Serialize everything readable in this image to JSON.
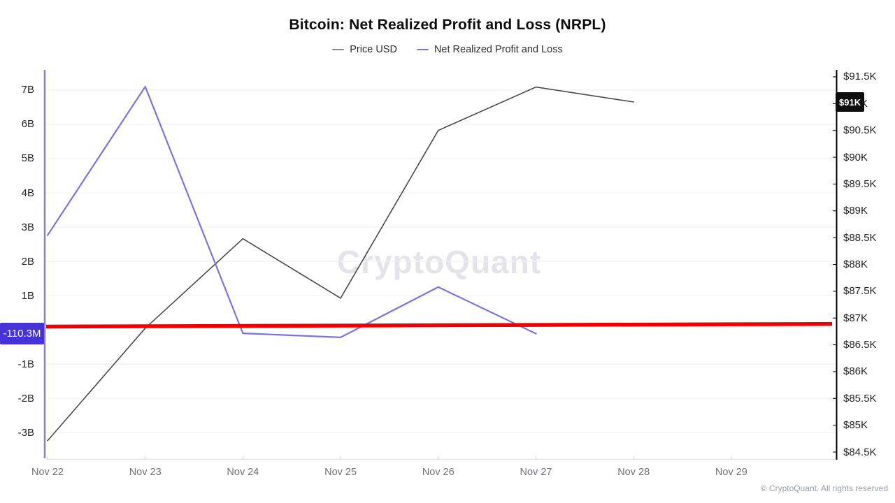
{
  "title": "Bitcoin: Net Realized Profit and Loss (NRPL)",
  "legend": {
    "items": [
      {
        "label": "Price USD",
        "color": "#8a8a8e"
      },
      {
        "label": "Net Realized Profit and Loss",
        "color": "#7b74e0"
      }
    ]
  },
  "watermark": "CryptoQuant",
  "footer": {
    "copyright": "© CryptoQuant. All rights reserved"
  },
  "axes": {
    "left": {
      "tick_labels": [
        "7B",
        "6B",
        "5B",
        "4B",
        "3B",
        "2B",
        "1B",
        "-1B",
        "-2B",
        "-3B"
      ],
      "tick_values_b": [
        7,
        6,
        5,
        4,
        3,
        2,
        1,
        -1,
        -2,
        -3
      ],
      "range_b": [
        -3.77,
        7.59
      ],
      "spine_color": "#8d80cc",
      "current_value_badge": {
        "text": "-110.3M",
        "bg": "#4633d8",
        "text_color": "#ffffff",
        "value_b": -0.1103
      }
    },
    "right": {
      "tick_labels": [
        "$91.5K",
        "$91K",
        "$90.5K",
        "$90K",
        "$89.5K",
        "$89K",
        "$88.5K",
        "$88K",
        "$87.5K",
        "$87K",
        "$86.5K",
        "$86K",
        "$85.5K",
        "$85K",
        "$84.5K"
      ],
      "tick_values_k": [
        91.5,
        91,
        90.5,
        90,
        89.5,
        89,
        88.5,
        88,
        87.5,
        87,
        86.5,
        86,
        85.5,
        85,
        84.5
      ],
      "range_k": [
        84.37,
        91.63
      ],
      "spine_color": "#000000",
      "current_value_badge": {
        "text": "$91K",
        "bg": "#0e0e0e",
        "text_color": "#ffffff",
        "value_k": 91.03
      }
    },
    "x": {
      "tick_labels": [
        "Nov 22",
        "Nov 23",
        "Nov 24",
        "Nov 25",
        "Nov 26",
        "Nov 27",
        "Nov 28",
        "Nov 29"
      ]
    }
  },
  "chart_data": {
    "type": "line",
    "title": "Bitcoin: Net Realized Profit and Loss (NRPL)",
    "x": [
      "Nov 22",
      "Nov 23",
      "Nov 24",
      "Nov 25",
      "Nov 26",
      "Nov 27",
      "Nov 28",
      "Nov 29"
    ],
    "grid": "horizontal, at each left-axis tick",
    "legend_position": "top-center",
    "series": [
      {
        "name": "Price USD",
        "axis": "right",
        "unit": "USD thousands",
        "color": "#4a4a4e",
        "stroke_width": 1.6,
        "values": [
          84.71,
          86.81,
          88.48,
          87.37,
          90.5,
          91.31,
          91.03,
          null
        ]
      },
      {
        "name": "Net Realized Profit and Loss",
        "axis": "left",
        "unit": "USD billions",
        "color": "#7b74e0",
        "stroke_width": 2.2,
        "values": [
          2.76,
          7.1,
          -0.1,
          -0.22,
          1.25,
          -0.1103,
          null,
          null
        ]
      }
    ],
    "annotations": [
      {
        "name": "red-trendline",
        "type": "trendline",
        "axis": "right",
        "unit": "USD thousands",
        "color": "#ec0202",
        "stroke_width": 5.5,
        "start_value": 86.84,
        "end_value": 86.89
      }
    ],
    "ylim_left_billions": [
      -3.77,
      7.59
    ],
    "ylim_right_thousands": [
      84.37,
      91.63
    ],
    "latest_values": {
      "price_usd": "$91K",
      "nrpl": "-110.3M"
    }
  }
}
